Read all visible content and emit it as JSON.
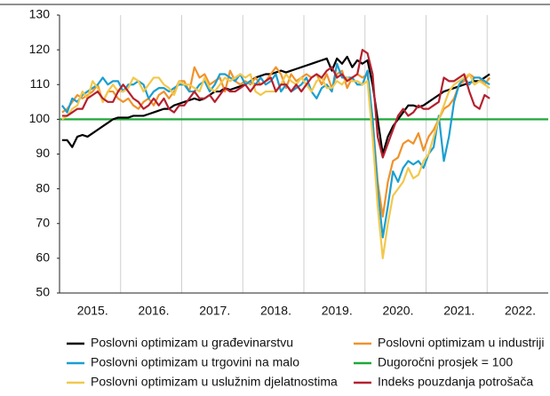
{
  "chart_data": {
    "type": "line",
    "categories": [
      null,
      null,
      null,
      null,
      null,
      null,
      "2015.",
      null,
      null,
      null,
      null,
      null,
      null,
      null,
      null,
      null,
      null,
      null,
      "2016.",
      null,
      null,
      null,
      null,
      null,
      null,
      null,
      null,
      null,
      null,
      null,
      "2017.",
      null,
      null,
      null,
      null,
      null,
      null,
      null,
      null,
      null,
      null,
      null,
      "2018.",
      null,
      null,
      null,
      null,
      null,
      null,
      null,
      null,
      null,
      null,
      null,
      "2019.",
      null,
      null,
      null,
      null,
      null,
      null,
      null,
      null,
      null,
      null,
      null,
      "2020.",
      null,
      null,
      null,
      null,
      null,
      null,
      null,
      null,
      null,
      null,
      null,
      "2021.",
      null,
      null,
      null,
      null,
      null,
      null,
      null,
      null,
      null,
      null,
      null,
      "2022.",
      null,
      null,
      null,
      null,
      null
    ],
    "ylim": [
      50,
      130
    ],
    "yticks": [
      50,
      60,
      70,
      80,
      90,
      100,
      110,
      120,
      130
    ],
    "series": [
      {
        "name": "Poslovni optimizam u građevinarstvu",
        "color": "#000000",
        "values": [
          94,
          94,
          92,
          95,
          95.5,
          95,
          96,
          97,
          98,
          99,
          100,
          100.5,
          100.5,
          100.5,
          101,
          101,
          101,
          101.5,
          102,
          102.5,
          103,
          103,
          104,
          104.5,
          105,
          105.5,
          106,
          105.5,
          106,
          107,
          108,
          108,
          109,
          108.5,
          109,
          109.5,
          110,
          111,
          112,
          112.5,
          113,
          113,
          113.5,
          114,
          113.5,
          114,
          114.5,
          115,
          115.5,
          116,
          116.5,
          117,
          117.5,
          114,
          117.5,
          116,
          118,
          115,
          117,
          116,
          117,
          110,
          100,
          90,
          95,
          98,
          100,
          102,
          104,
          104,
          103.5,
          104,
          105,
          106,
          107,
          108,
          108.5,
          109,
          109.5,
          110,
          110.5,
          111,
          111,
          112,
          113,
          null,
          null,
          null,
          null,
          null,
          null,
          null,
          null,
          null,
          null,
          null
        ]
      },
      {
        "name": "Poslovni optimizam u industriji",
        "color": "#f0922b",
        "values": [
          102,
          103,
          105,
          107,
          106,
          107,
          108,
          110,
          105,
          108,
          108,
          106,
          105,
          106,
          104,
          103,
          105,
          106,
          104,
          107,
          108,
          106,
          108,
          111,
          111,
          108,
          115,
          112,
          113,
          110,
          111,
          112,
          108,
          114,
          111,
          110,
          111,
          110,
          112,
          110,
          111,
          113,
          115,
          113,
          109,
          113,
          111,
          112,
          113,
          112,
          113,
          110,
          113,
          109,
          113,
          114,
          109,
          112,
          113,
          112,
          113,
          100,
          82,
          72,
          82,
          88,
          89,
          93,
          94,
          93,
          96,
          91,
          95,
          97,
          100,
          103,
          104,
          106,
          110,
          111,
          113,
          112,
          112,
          110,
          112,
          null,
          null,
          null,
          null,
          null,
          null,
          null,
          null,
          null,
          null,
          null
        ]
      },
      {
        "name": "Poslovni optimizam u trgovini na malo",
        "color": "#1a9fd0",
        "values": [
          104,
          102,
          106,
          105,
          107,
          108,
          109,
          110,
          112,
          110,
          111,
          111,
          108,
          110,
          110,
          111,
          110,
          106,
          108,
          109,
          109,
          108,
          109,
          110,
          110,
          108,
          108,
          110,
          111,
          108,
          110,
          113,
          113,
          112,
          111,
          113,
          110,
          111,
          110,
          112,
          110,
          111,
          113,
          108,
          110,
          108,
          109,
          110,
          112,
          108,
          106,
          109,
          110,
          108,
          116,
          112,
          112,
          112,
          110,
          110,
          114,
          100,
          80,
          66,
          75,
          85,
          82,
          86,
          88,
          87,
          88,
          86,
          90,
          92,
          101,
          88,
          95,
          105,
          110,
          112,
          110,
          112,
          112,
          111,
          110,
          null,
          null,
          null,
          null,
          null,
          null,
          null,
          null,
          null,
          null,
          null
        ]
      },
      {
        "name": "Poslovni optimizam u uslužnim djelatnostima",
        "color": "#f2c84b",
        "values": [
          100,
          101,
          103,
          104,
          108,
          106,
          111,
          109,
          105,
          108,
          110,
          108,
          108,
          109,
          112,
          111,
          108,
          110,
          112,
          112,
          110,
          109,
          107,
          111,
          110,
          110,
          109,
          108,
          112,
          109,
          108,
          110,
          112,
          111,
          112,
          113,
          112,
          113,
          108,
          107,
          108,
          108,
          108,
          110,
          113,
          111,
          110,
          112,
          110,
          108,
          111,
          112,
          109,
          109,
          111,
          110,
          112,
          111,
          111,
          110,
          111,
          95,
          75,
          60,
          70,
          78,
          80,
          82,
          86,
          83,
          84,
          88,
          90,
          95,
          100,
          104,
          108,
          110,
          111,
          112,
          113,
          110,
          111,
          110,
          109,
          null,
          null,
          null,
          null,
          null,
          null,
          null,
          null,
          null,
          null,
          null
        ]
      },
      {
        "name": "Indeks pouzdanja potrošača",
        "color": "#b5202e",
        "values": [
          101,
          101,
          102,
          103,
          103,
          106,
          107,
          108,
          106,
          105,
          105,
          108,
          110,
          108,
          106,
          105,
          103,
          104,
          106,
          104,
          106,
          103,
          102,
          104,
          104,
          106,
          108,
          106,
          106,
          107,
          105,
          107,
          109,
          108,
          108,
          109,
          110,
          108,
          110,
          110,
          111,
          112,
          108,
          110,
          110,
          108,
          110,
          108,
          110,
          112,
          113,
          112,
          114,
          115,
          112,
          113,
          111,
          112,
          113,
          120,
          119,
          113,
          95,
          89,
          93,
          97,
          101,
          103,
          101,
          102,
          104,
          103,
          103,
          104,
          105,
          112,
          111,
          111,
          112,
          113,
          108,
          104,
          103,
          107,
          106,
          null,
          null,
          null,
          null,
          null,
          null,
          null,
          null,
          null,
          null,
          null
        ]
      }
    ],
    "reference_line": {
      "name": "Dugoročni prosjek = 100",
      "color": "#1fa83a",
      "value": 100
    }
  }
}
